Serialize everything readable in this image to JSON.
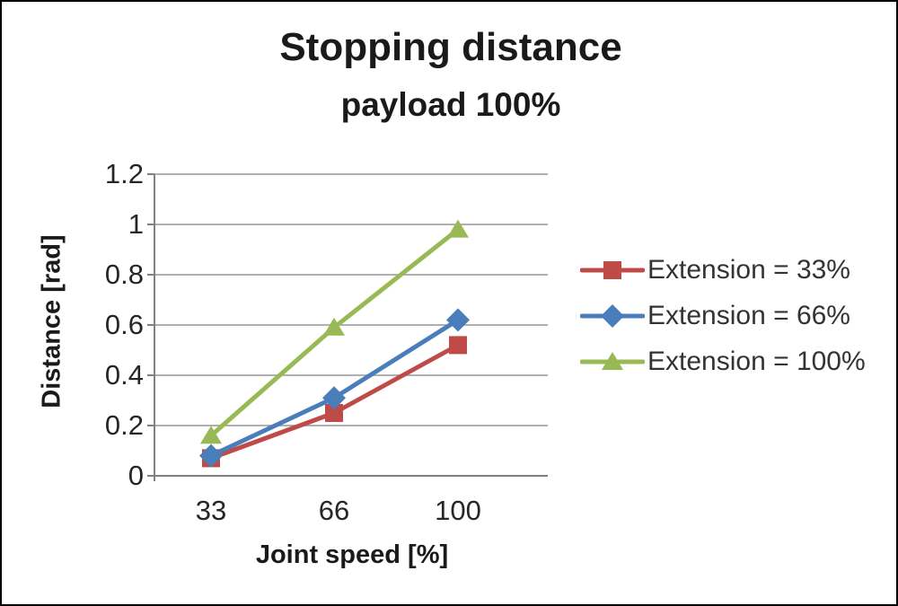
{
  "page": {
    "background": "#ffffff",
    "border_color": "#000000"
  },
  "chart_data": {
    "type": "line",
    "title": "Stopping distance",
    "subtitle": "payload 100%",
    "xlabel": "Joint speed [%]",
    "ylabel": "Distance [rad]",
    "categories": [
      33,
      66,
      100
    ],
    "x_tick_labels": [
      "33",
      "66",
      "100"
    ],
    "y_tick_labels": [
      "0",
      "0.2",
      "0.4",
      "0.6",
      "0.8",
      "1",
      "1.2"
    ],
    "ylim": [
      0,
      1.2
    ],
    "y_step": 0.2,
    "grid": "horizontal",
    "legend_position": "right",
    "gridline_color": "#969696",
    "axis_color": "#808080",
    "text_color": "#262626",
    "series": [
      {
        "name": "Extension = 33%",
        "marker": "square",
        "color": "#BE4B48",
        "values": [
          0.07,
          0.25,
          0.52
        ]
      },
      {
        "name": "Extension = 66%",
        "marker": "diamond",
        "color": "#4A7EBB",
        "values": [
          0.08,
          0.31,
          0.62
        ]
      },
      {
        "name": "Extension = 100%",
        "marker": "triangle",
        "color": "#98B954",
        "values": [
          0.16,
          0.59,
          0.98
        ]
      }
    ]
  }
}
